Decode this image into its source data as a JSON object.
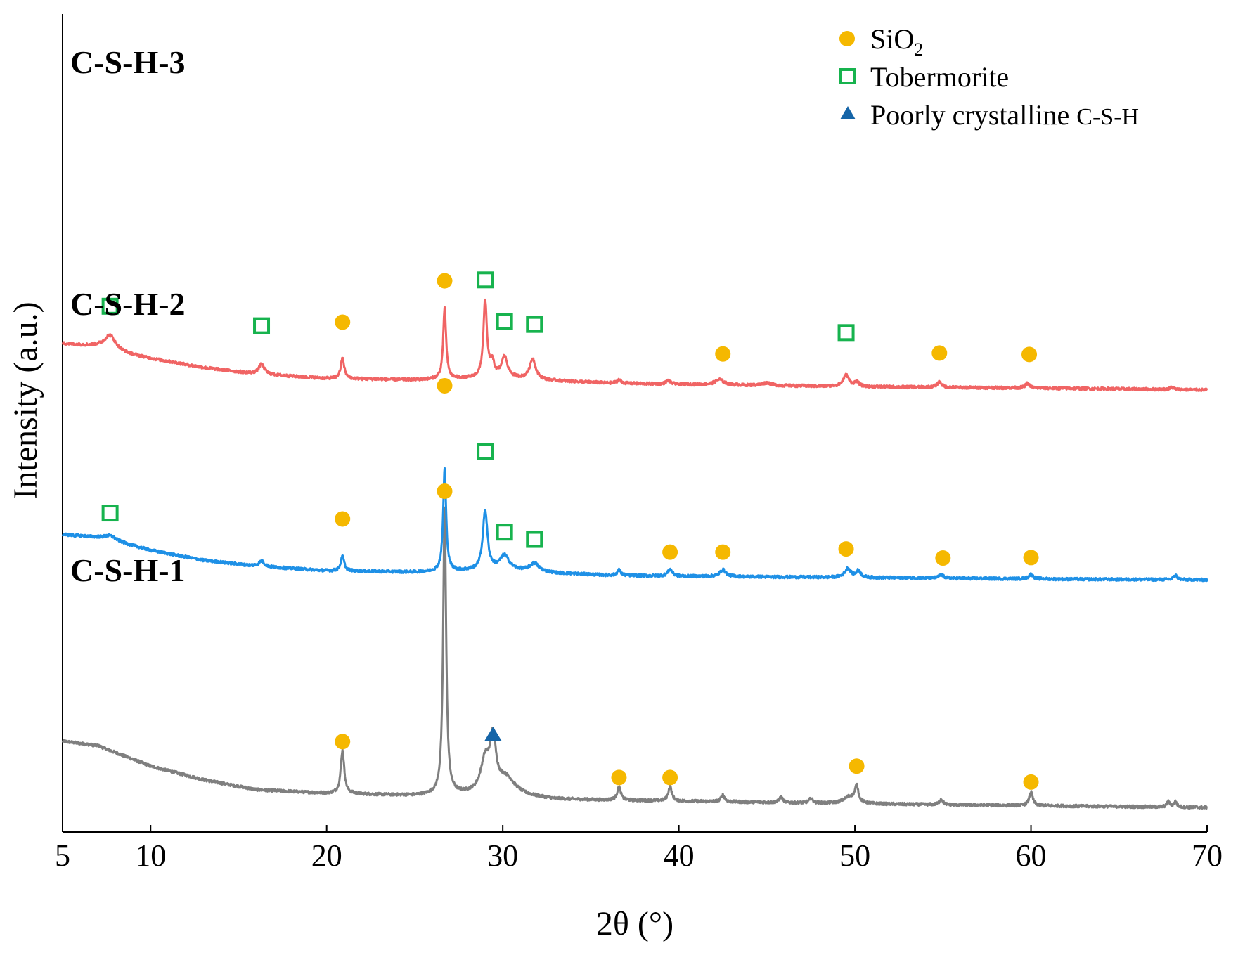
{
  "chart_data": {
    "type": "line",
    "title": "",
    "xlabel": "2θ (°)",
    "ylabel": "Intensity (a.u.)",
    "xlim": [
      5,
      70
    ],
    "ylim": [
      0,
      1.8
    ],
    "xticks": [
      5,
      10,
      20,
      30,
      40,
      50,
      60,
      70
    ],
    "grid": false,
    "legend": {
      "placement": "top-right",
      "entries": [
        {
          "key": "sio2",
          "label": "SiO",
          "subscript": "2",
          "tail": "",
          "marker": "circle",
          "color": "#F5B800"
        },
        {
          "key": "tobermorite",
          "label": "Tobermorite",
          "subscript": "",
          "tail": "",
          "marker": "square",
          "color": "#17B34E"
        },
        {
          "key": "poorly",
          "label": "Poorly crystalline ",
          "subscript": "",
          "tail": "C-S-H",
          "marker": "triangle",
          "color": "#1565A8"
        }
      ]
    },
    "series": [
      {
        "name": "C-S-H-1",
        "color": "#7F7F7F",
        "baseline": [
          [
            5,
            0.2
          ],
          [
            7,
            0.19
          ],
          [
            8,
            0.175
          ],
          [
            10,
            0.145
          ],
          [
            13,
            0.115
          ],
          [
            16,
            0.093
          ],
          [
            20,
            0.085
          ],
          [
            25,
            0.08
          ],
          [
            28,
            0.082
          ],
          [
            30,
            0.082
          ],
          [
            33,
            0.072
          ],
          [
            36,
            0.07
          ],
          [
            40,
            0.068
          ],
          [
            50,
            0.062
          ],
          [
            60,
            0.058
          ],
          [
            70,
            0.054
          ]
        ],
        "peaks": [
          {
            "x": 20.9,
            "h": 0.095,
            "w": 0.12
          },
          {
            "x": 26.7,
            "h": 0.63,
            "w": 0.1
          },
          {
            "x": 29.0,
            "h": 0.07,
            "w": 0.3
          },
          {
            "x": 29.45,
            "h": 0.11,
            "w": 0.2
          },
          {
            "x": 30.2,
            "h": 0.035,
            "w": 0.6
          },
          {
            "x": 36.6,
            "h": 0.03,
            "w": 0.12
          },
          {
            "x": 39.5,
            "h": 0.032,
            "w": 0.12
          },
          {
            "x": 42.5,
            "h": 0.015,
            "w": 0.12
          },
          {
            "x": 45.8,
            "h": 0.012,
            "w": 0.12
          },
          {
            "x": 47.5,
            "h": 0.01,
            "w": 0.12
          },
          {
            "x": 49.7,
            "h": 0.015,
            "w": 0.4
          },
          {
            "x": 50.1,
            "h": 0.035,
            "w": 0.12
          },
          {
            "x": 54.9,
            "h": 0.012,
            "w": 0.12
          },
          {
            "x": 60.0,
            "h": 0.03,
            "w": 0.12
          },
          {
            "x": 67.8,
            "h": 0.012,
            "w": 0.1
          },
          {
            "x": 68.2,
            "h": 0.012,
            "w": 0.1
          }
        ],
        "markers": [
          {
            "x": 20.9,
            "y": 0.199,
            "type": "circle"
          },
          {
            "x": 26.7,
            "y": 0.75,
            "type": "circle"
          },
          {
            "x": 29.45,
            "y": 0.215,
            "type": "triangle"
          },
          {
            "x": 36.6,
            "y": 0.12,
            "type": "circle"
          },
          {
            "x": 39.5,
            "y": 0.12,
            "type": "circle"
          },
          {
            "x": 50.1,
            "y": 0.145,
            "type": "circle"
          },
          {
            "x": 60.0,
            "y": 0.11,
            "type": "circle"
          }
        ]
      },
      {
        "name": "C-S-H-2",
        "color": "#1E90E6",
        "baseline": [
          [
            5,
            0.655
          ],
          [
            7,
            0.648
          ],
          [
            8,
            0.64
          ],
          [
            10,
            0.62
          ],
          [
            13,
            0.598
          ],
          [
            16,
            0.585
          ],
          [
            20,
            0.575
          ],
          [
            25,
            0.572
          ],
          [
            28,
            0.575
          ],
          [
            30,
            0.578
          ],
          [
            33,
            0.57
          ],
          [
            36,
            0.565
          ],
          [
            40,
            0.563
          ],
          [
            50,
            0.56
          ],
          [
            60,
            0.557
          ],
          [
            70,
            0.555
          ]
        ],
        "peaks": [
          {
            "x": 7.7,
            "h": 0.01,
            "w": 0.4
          },
          {
            "x": 16.3,
            "h": 0.012,
            "w": 0.2
          },
          {
            "x": 20.9,
            "h": 0.032,
            "w": 0.12
          },
          {
            "x": 26.7,
            "h": 0.225,
            "w": 0.1
          },
          {
            "x": 29.0,
            "h": 0.13,
            "w": 0.16
          },
          {
            "x": 30.1,
            "h": 0.03,
            "w": 0.3
          },
          {
            "x": 31.8,
            "h": 0.018,
            "w": 0.3
          },
          {
            "x": 36.6,
            "h": 0.012,
            "w": 0.12
          },
          {
            "x": 39.5,
            "h": 0.015,
            "w": 0.15
          },
          {
            "x": 42.5,
            "h": 0.015,
            "w": 0.2
          },
          {
            "x": 49.6,
            "h": 0.02,
            "w": 0.2
          },
          {
            "x": 50.2,
            "h": 0.015,
            "w": 0.15
          },
          {
            "x": 54.9,
            "h": 0.008,
            "w": 0.15
          },
          {
            "x": 60.0,
            "h": 0.01,
            "w": 0.15
          },
          {
            "x": 68.2,
            "h": 0.01,
            "w": 0.12
          }
        ],
        "markers": [
          {
            "x": 7.7,
            "y": 0.702,
            "type": "square"
          },
          {
            "x": 20.9,
            "y": 0.689,
            "type": "circle"
          },
          {
            "x": 26.7,
            "y": 0.982,
            "type": "circle"
          },
          {
            "x": 29.0,
            "y": 0.838,
            "type": "square"
          },
          {
            "x": 30.1,
            "y": 0.66,
            "type": "square"
          },
          {
            "x": 31.8,
            "y": 0.644,
            "type": "square"
          },
          {
            "x": 39.5,
            "y": 0.616,
            "type": "circle"
          },
          {
            "x": 42.5,
            "y": 0.616,
            "type": "circle"
          },
          {
            "x": 49.5,
            "y": 0.623,
            "type": "circle"
          },
          {
            "x": 55.0,
            "y": 0.603,
            "type": "circle"
          },
          {
            "x": 60.0,
            "y": 0.604,
            "type": "circle"
          }
        ]
      },
      {
        "name": "C-S-H-3",
        "color": "#F06464",
        "baseline": [
          [
            5,
            1.075
          ],
          [
            7,
            1.068
          ],
          [
            8,
            1.057
          ],
          [
            10,
            1.042
          ],
          [
            13,
            1.022
          ],
          [
            16,
            1.008
          ],
          [
            20,
            0.998
          ],
          [
            25,
            0.995
          ],
          [
            28,
            0.998
          ],
          [
            30,
            1.0
          ],
          [
            33,
            0.993
          ],
          [
            36,
            0.988
          ],
          [
            40,
            0.985
          ],
          [
            50,
            0.98
          ],
          [
            60,
            0.977
          ],
          [
            70,
            0.973
          ]
        ],
        "peaks": [
          {
            "x": 7.7,
            "h": 0.033,
            "w": 0.4
          },
          {
            "x": 16.3,
            "h": 0.022,
            "w": 0.2
          },
          {
            "x": 20.9,
            "h": 0.045,
            "w": 0.12
          },
          {
            "x": 26.7,
            "h": 0.155,
            "w": 0.1
          },
          {
            "x": 29.0,
            "h": 0.168,
            "w": 0.12
          },
          {
            "x": 29.4,
            "h": 0.03,
            "w": 0.15
          },
          {
            "x": 30.1,
            "h": 0.045,
            "w": 0.2
          },
          {
            "x": 31.7,
            "h": 0.045,
            "w": 0.2
          },
          {
            "x": 36.6,
            "h": 0.008,
            "w": 0.12
          },
          {
            "x": 39.4,
            "h": 0.008,
            "w": 0.15
          },
          {
            "x": 42.3,
            "h": 0.012,
            "w": 0.3
          },
          {
            "x": 45.0,
            "h": 0.006,
            "w": 0.3
          },
          {
            "x": 49.5,
            "h": 0.025,
            "w": 0.2
          },
          {
            "x": 50.1,
            "h": 0.01,
            "w": 0.15
          },
          {
            "x": 54.8,
            "h": 0.012,
            "w": 0.15
          },
          {
            "x": 59.8,
            "h": 0.01,
            "w": 0.15
          },
          {
            "x": 68.0,
            "h": 0.005,
            "w": 0.12
          }
        ],
        "markers": [
          {
            "x": 7.7,
            "y": 1.157,
            "type": "square"
          },
          {
            "x": 16.3,
            "y": 1.114,
            "type": "square"
          },
          {
            "x": 20.9,
            "y": 1.122,
            "type": "circle"
          },
          {
            "x": 26.7,
            "y": 1.213,
            "type": "circle"
          },
          {
            "x": 29.0,
            "y": 1.215,
            "type": "square"
          },
          {
            "x": 30.1,
            "y": 1.124,
            "type": "square"
          },
          {
            "x": 31.8,
            "y": 1.117,
            "type": "square"
          },
          {
            "x": 42.5,
            "y": 1.052,
            "type": "circle"
          },
          {
            "x": 49.5,
            "y": 1.099,
            "type": "square"
          },
          {
            "x": 54.8,
            "y": 1.054,
            "type": "circle"
          },
          {
            "x": 59.9,
            "y": 1.051,
            "type": "circle"
          }
        ]
      }
    ],
    "sample_labels": [
      {
        "text": "C-S-H-3",
        "series": "C-S-H-3"
      },
      {
        "text": "C-S-H-2",
        "series": "C-S-H-2"
      },
      {
        "text": "C-S-H-1",
        "series": "C-S-H-1"
      }
    ]
  },
  "colors": {
    "sio2": "#F5B800",
    "tobermorite": "#17B34E",
    "poorly": "#1565A8",
    "axis": "#000000"
  }
}
